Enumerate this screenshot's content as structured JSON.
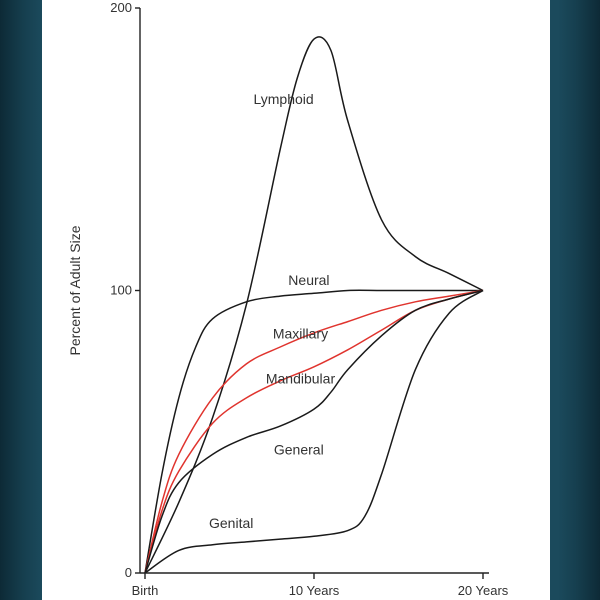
{
  "chart_data": {
    "type": "line",
    "ylabel": "Percent of Adult Size",
    "xlabel": "",
    "ylim": [
      0,
      200
    ],
    "xlim": [
      0,
      20
    ],
    "y_ticks": [
      {
        "value": 0,
        "label": "0"
      },
      {
        "value": 100,
        "label": "100"
      },
      {
        "value": 200,
        "label": "200"
      }
    ],
    "x_ticks": [
      {
        "value": 0,
        "label": "Birth"
      },
      {
        "value": 10,
        "label": "10 Years"
      },
      {
        "value": 20,
        "label": "20 Years"
      }
    ],
    "grid": false,
    "colors": {
      "black_curve": "#1a1a1a",
      "red_curve": "#e0342e",
      "axis": "#222222"
    },
    "series": [
      {
        "name": "Lymphoid",
        "color": "#1a1a1a",
        "x": [
          0,
          2,
          4,
          6,
          8,
          9,
          10,
          11,
          12,
          14,
          16,
          18,
          20
        ],
        "y": [
          0,
          25,
          55,
          95,
          150,
          175,
          189,
          185,
          160,
          125,
          112,
          106,
          100
        ]
      },
      {
        "name": "Neural",
        "color": "#1a1a1a",
        "x": [
          0,
          1,
          2,
          3,
          4,
          6,
          8,
          10,
          12,
          14,
          16,
          18,
          20
        ],
        "y": [
          0,
          35,
          62,
          80,
          90,
          96,
          98,
          99,
          100,
          100,
          100,
          100,
          100
        ]
      },
      {
        "name": "Maxillary",
        "color": "#e0342e",
        "x": [
          0,
          1,
          2,
          4,
          6,
          8,
          10,
          12,
          14,
          16,
          18,
          20
        ],
        "y": [
          0,
          25,
          42,
          62,
          74,
          80,
          85,
          89,
          93,
          96,
          98,
          100
        ]
      },
      {
        "name": "Mandibular",
        "color": "#e0342e",
        "x": [
          0,
          1,
          2,
          4,
          6,
          8,
          10,
          12,
          14,
          16,
          18,
          20
        ],
        "y": [
          0,
          22,
          36,
          53,
          62,
          68,
          73,
          79,
          86,
          93,
          97,
          100
        ]
      },
      {
        "name": "General",
        "color": "#1a1a1a",
        "x": [
          0,
          1,
          2,
          4,
          6,
          8,
          10,
          11,
          12,
          14,
          16,
          18,
          20
        ],
        "y": [
          0,
          20,
          32,
          42,
          48,
          52,
          58,
          64,
          72,
          84,
          93,
          97,
          100
        ]
      },
      {
        "name": "Genital",
        "color": "#1a1a1a",
        "x": [
          0,
          2,
          4,
          6,
          8,
          10,
          12,
          13,
          14,
          16,
          18,
          20
        ],
        "y": [
          0,
          8,
          10,
          11,
          12,
          13,
          15,
          20,
          35,
          72,
          92,
          100
        ]
      }
    ],
    "series_labels": [
      {
        "name": "Lymphoid",
        "x": 8.2,
        "y": 166
      },
      {
        "name": "Neural",
        "x": 9.7,
        "y": 102
      },
      {
        "name": "Maxillary",
        "x": 9.2,
        "y": 83
      },
      {
        "name": "Mandibular",
        "x": 9.2,
        "y": 67
      },
      {
        "name": "General",
        "x": 9.1,
        "y": 42
      },
      {
        "name": "Genital",
        "x": 5.1,
        "y": 16
      }
    ]
  }
}
